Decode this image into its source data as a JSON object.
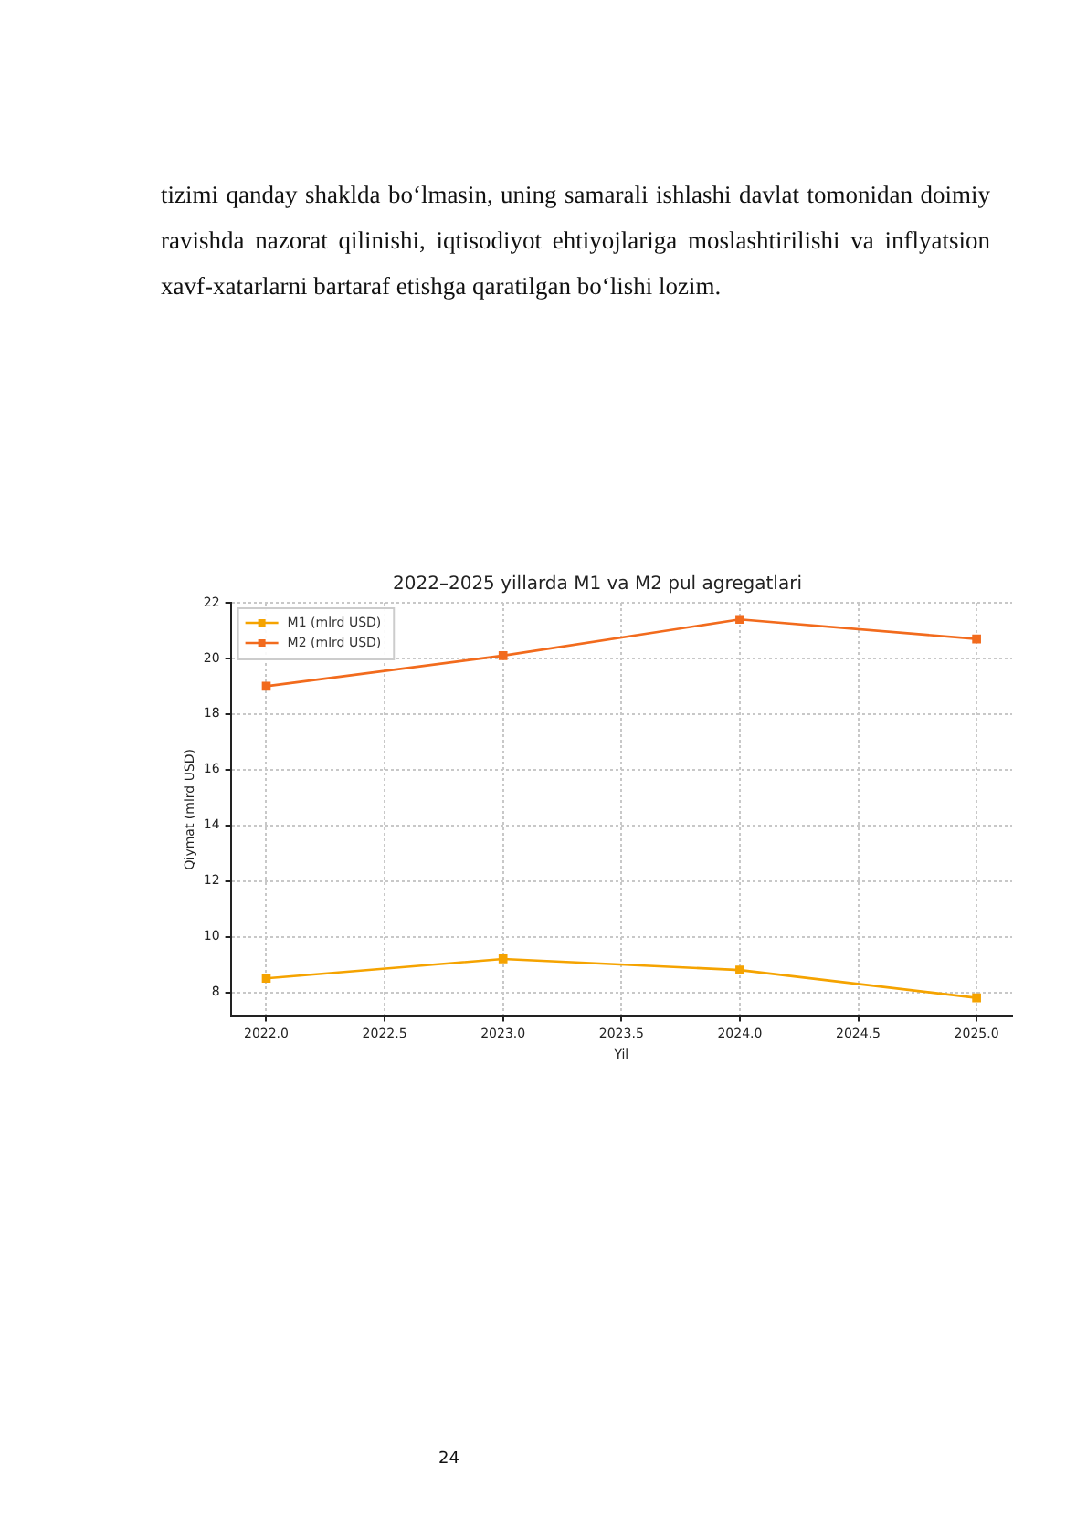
{
  "chart_data": {
    "type": "line",
    "title": "2022–2025 yillarda M1 va M2 pul agregatlari",
    "xlabel": "Yil",
    "ylabel": "Qiymat (mlrd USD)",
    "x": [
      2022,
      2023,
      2024,
      2025
    ],
    "series": [
      {
        "name": "M1 (mlrd USD)",
        "color": "#f5a300",
        "values": [
          8.5,
          9.2,
          8.8,
          7.8
        ]
      },
      {
        "name": "M2 (mlrd USD)",
        "color": "#f26b1d",
        "values": [
          19.0,
          20.1,
          21.4,
          20.7
        ]
      }
    ],
    "xlim": [
      2021.85,
      2025.15
    ],
    "xticks": [
      {
        "value": 2022,
        "label": "2022.0"
      },
      {
        "value": 2022.5,
        "label": "2022.5"
      },
      {
        "value": 2023,
        "label": "2023.0"
      },
      {
        "value": 2023.5,
        "label": "2023.5"
      },
      {
        "value": 2024,
        "label": "2024.0"
      },
      {
        "value": 2024.5,
        "label": "2024.5"
      },
      {
        "value": 2025,
        "label": "2025.0"
      }
    ],
    "ylim": [
      7.15,
      22
    ],
    "yticks": [
      8,
      10,
      12,
      14,
      16,
      18,
      20,
      22
    ],
    "grid": true,
    "legend": "top left",
    "marker": "square",
    "line_style": "solid",
    "annotations": [
      "tizimi qanday shaklda bo‘lmasin, uning samarali ishlashi davlat tomonidan doimiy ravishda nazorat qilinishi, iqtisodiyot ehtiyojlariga moslashtirilishi va inflyatsion xavf-xatarlarni bartaraf etishga qaratilgan bo‘lishi lozim.",
      "24"
    ]
  }
}
